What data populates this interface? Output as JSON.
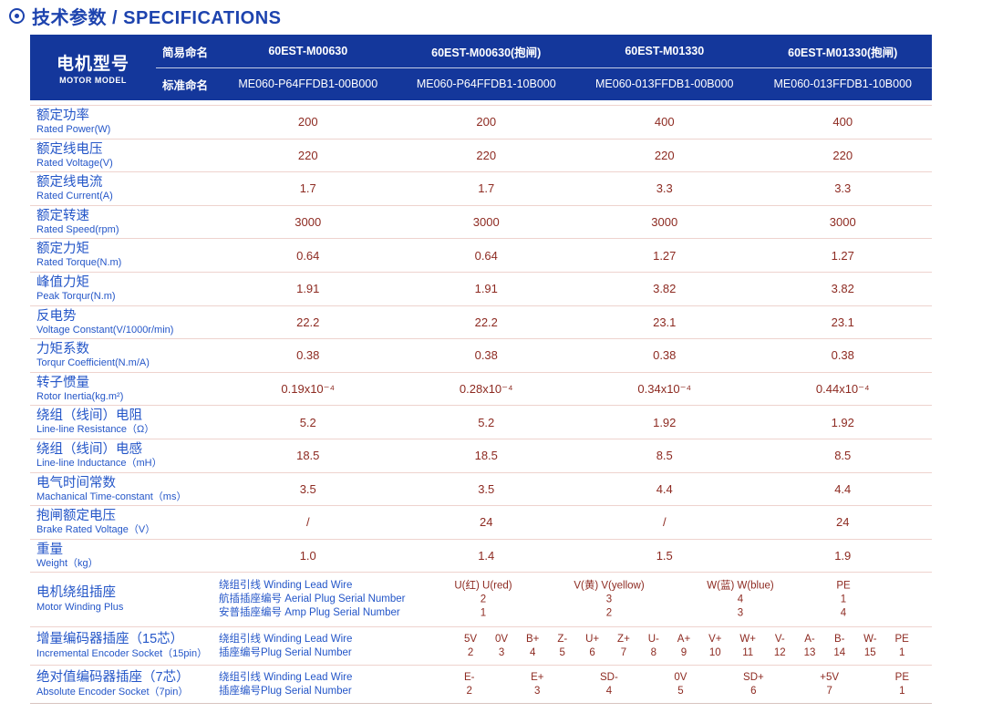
{
  "title": {
    "text": "技术参数 / SPECIFICATIONS",
    "icon": "circled-dot"
  },
  "colors": {
    "header_bg": "#14379b",
    "label_blue": "#2456c8",
    "title_blue": "#1d43ae",
    "value_red": "#8d2a21",
    "row_line": "#eed3ce"
  },
  "header": {
    "motor_model_zh": "电机型号",
    "motor_model_en": "MOTOR MODEL",
    "simple_name_label": "简易命名",
    "standard_name_label": "标准命名",
    "models": [
      "60EST-M00630",
      "60EST-M00630(抱闸)",
      "60EST-M01330",
      "60EST-M01330(抱闸)"
    ],
    "standard_names": [
      "ME060-P64FFDB1-00B000",
      "ME060-P64FFDB1-10B000",
      "ME060-013FFDB1-00B000",
      "ME060-013FFDB1-10B000"
    ]
  },
  "spec_rows": [
    {
      "zh": "额定功率",
      "en": "Rated Power(W)",
      "values": [
        "200",
        "200",
        "400",
        "400"
      ]
    },
    {
      "zh": "额定线电压",
      "en": "Rated Voltage(V)",
      "values": [
        "220",
        "220",
        "220",
        "220"
      ]
    },
    {
      "zh": "额定线电流",
      "en": "Rated Current(A)",
      "values": [
        "1.7",
        "1.7",
        "3.3",
        "3.3"
      ]
    },
    {
      "zh": "额定转速",
      "en": "Rated Speed(rpm)",
      "values": [
        "3000",
        "3000",
        "3000",
        "3000"
      ]
    },
    {
      "zh": "额定力矩",
      "en": "Rated Torque(N.m)",
      "values": [
        "0.64",
        "0.64",
        "1.27",
        "1.27"
      ]
    },
    {
      "zh": "峰值力矩",
      "en": "Peak Torqur(N.m)",
      "values": [
        "1.91",
        "1.91",
        "3.82",
        "3.82"
      ]
    },
    {
      "zh": "反电势",
      "en": "Voltage Constant(V/1000r/min)",
      "values": [
        "22.2",
        "22.2",
        "23.1",
        "23.1"
      ]
    },
    {
      "zh": "力矩系数",
      "en": "Torqur Coefficient(N.m/A)",
      "values": [
        "0.38",
        "0.38",
        "0.38",
        "0.38"
      ]
    },
    {
      "zh": "转子惯量",
      "en": "Rotor Inertia(kg.m²)",
      "values": [
        "0.19x10⁻⁴",
        "0.28x10⁻⁴",
        "0.34x10⁻⁴",
        "0.44x10⁻⁴"
      ]
    },
    {
      "zh": "绕组（线间）电阻",
      "en": "Line-line Resistance（Ω）",
      "values": [
        "5.2",
        "5.2",
        "1.92",
        "1.92"
      ]
    },
    {
      "zh": "绕组（线间）电感",
      "en": "Line-line Inductance（mH）",
      "values": [
        "18.5",
        "18.5",
        "8.5",
        "8.5"
      ]
    },
    {
      "zh": "电气时间常数",
      "en": "Machanical Time-constant（ms）",
      "values": [
        "3.5",
        "3.5",
        "4.4",
        "4.4"
      ]
    },
    {
      "zh": "抱闸额定电压",
      "en": "Brake Rated Voltage（V）",
      "values": [
        "/",
        "24",
        "/",
        "24"
      ]
    },
    {
      "zh": "重量",
      "en": "Weight（kg）",
      "values": [
        "1.0",
        "1.4",
        "1.5",
        "1.9"
      ]
    }
  ],
  "winding": {
    "zh": "电机绕组插座",
    "en": "Motor Winding Plus",
    "sub_labels": [
      "绕组引线 Winding Lead Wire",
      "航插插座编号 Aerial Plug Serial Number",
      "安普插座编号 Amp Plug Serial Number"
    ],
    "columns": [
      {
        "signal": "U(红) U(red)",
        "aerial": "2",
        "amp": "1"
      },
      {
        "signal": "V(黄) V(yellow)",
        "aerial": "3",
        "amp": "2"
      },
      {
        "signal": "W(蓝) W(blue)",
        "aerial": "4",
        "amp": "3"
      },
      {
        "signal": "PE",
        "aerial": "1",
        "amp": "4"
      }
    ]
  },
  "incremental_encoder": {
    "zh": "增量编码器插座（15芯）",
    "en": "Incremental Encoder Socket（15pin）",
    "sub_labels": [
      "绕组引线 Winding Lead Wire",
      "插座编号Plug Serial Number"
    ],
    "signals": [
      "5V",
      "0V",
      "B+",
      "Z-",
      "U+",
      "Z+",
      "U-",
      "A+",
      "V+",
      "W+",
      "V-",
      "A-",
      "B-",
      "W-",
      "PE"
    ],
    "pins": [
      "2",
      "3",
      "4",
      "5",
      "6",
      "7",
      "8",
      "9",
      "10",
      "11",
      "12",
      "13",
      "14",
      "15",
      "1"
    ]
  },
  "absolute_encoder": {
    "zh": "绝对值编码器插座（7芯）",
    "en": "Absolute Encoder Socket（7pin）",
    "sub_labels": [
      "绕组引线 Winding Lead Wire",
      "插座编号Plug Serial Number"
    ],
    "signals": [
      "E-",
      "E+",
      "SD-",
      "0V",
      "SD+",
      "+5V",
      "PE"
    ],
    "pins": [
      "2",
      "3",
      "4",
      "5",
      "6",
      "7",
      "1"
    ]
  }
}
